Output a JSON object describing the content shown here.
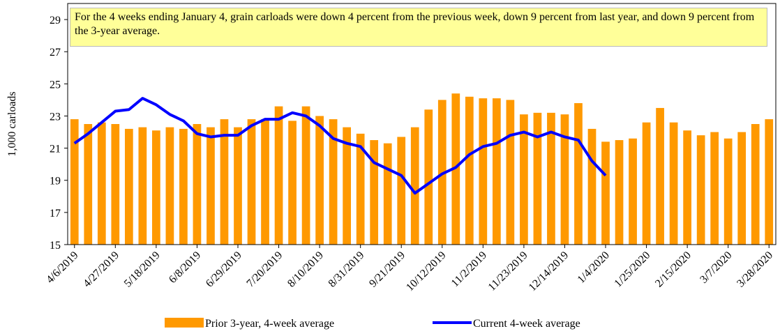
{
  "chart_data": {
    "type": "bar_line",
    "annotation": "For the 4 weeks ending January 4, grain carloads were down 4 percent from the previous week, down 9 percent from last year, and down 9 percent from the 3-year average.",
    "y_label": "1,000 carloads",
    "categories": [
      "4/6/2019",
      null,
      null,
      "4/27/2019",
      null,
      null,
      "5/18/2019",
      null,
      null,
      "6/8/2019",
      null,
      null,
      "6/29/2019",
      null,
      null,
      "7/20/2019",
      null,
      null,
      "8/10/2019",
      null,
      null,
      "8/31/2019",
      null,
      null,
      "9/21/2019",
      null,
      null,
      "10/12/2019",
      null,
      null,
      "11/2/2019",
      null,
      null,
      "11/23/2019",
      null,
      null,
      "12/14/2019",
      null,
      null,
      "1/4/2020",
      null,
      null,
      "1/25/2020",
      null,
      null,
      "2/15/2020",
      null,
      null,
      "3/7/2020",
      null,
      null,
      "3/28/2020"
    ],
    "series": [
      {
        "name": "Prior 3-year, 4-week average",
        "kind": "bar",
        "color": "#ff9900",
        "values": [
          22.8,
          22.5,
          22.6,
          22.5,
          22.2,
          22.3,
          22.1,
          22.3,
          22.2,
          22.5,
          22.3,
          22.8,
          22.3,
          22.8,
          22.8,
          23.6,
          22.7,
          23.6,
          23.0,
          22.8,
          22.3,
          21.9,
          21.5,
          21.3,
          21.7,
          22.3,
          23.4,
          24.0,
          24.4,
          24.2,
          24.1,
          24.1,
          24.0,
          23.1,
          23.2,
          23.2,
          23.1,
          23.8,
          22.2,
          21.4,
          21.5,
          21.6,
          22.6,
          23.5,
          22.6,
          22.1,
          21.8,
          22.0,
          21.6,
          22.0,
          22.5,
          22.8
        ]
      },
      {
        "name": "Current 4-week average",
        "kind": "line",
        "color": "#0000ff",
        "values": [
          21.3,
          21.9,
          22.6,
          23.3,
          23.4,
          24.1,
          23.7,
          23.1,
          22.7,
          21.9,
          21.7,
          21.8,
          21.8,
          22.4,
          22.8,
          22.8,
          23.2,
          23.0,
          22.4,
          21.6,
          21.3,
          21.1,
          20.1,
          19.7,
          19.3,
          18.2,
          18.8,
          19.4,
          19.8,
          20.6,
          21.1,
          21.3,
          21.8,
          22.0,
          21.7,
          22.0,
          21.7,
          21.5,
          20.2,
          19.3,
          null,
          null,
          null,
          null,
          null,
          null,
          null,
          null,
          null,
          null,
          null,
          null
        ]
      }
    ],
    "ylim": [
      15,
      30
    ],
    "yticks": [
      15,
      17,
      19,
      21,
      23,
      25,
      27,
      29
    ],
    "grid": false
  }
}
